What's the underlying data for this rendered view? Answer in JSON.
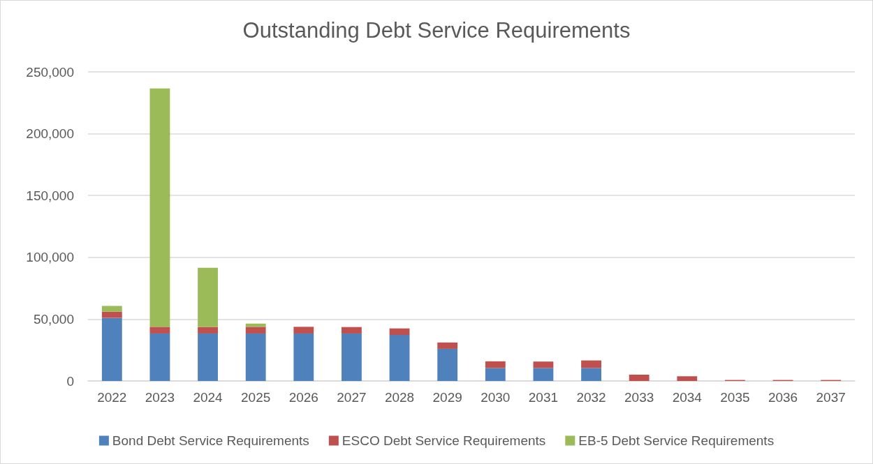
{
  "chart_data": {
    "type": "bar",
    "title": "Outstanding Debt Service Requirements",
    "stacked": true,
    "categories": [
      "2022",
      "2023",
      "2024",
      "2025",
      "2026",
      "2027",
      "2028",
      "2029",
      "2030",
      "2031",
      "2032",
      "2033",
      "2034",
      "2035",
      "2036",
      "2037"
    ],
    "series": [
      {
        "name": "Bond Debt Service Requirements",
        "color": "#4f81bd",
        "values": [
          51000,
          38400,
          38400,
          38400,
          38400,
          38400,
          37200,
          26000,
          10500,
          10500,
          10500,
          0,
          0,
          0,
          0,
          0
        ]
      },
      {
        "name": "ESCO Debt Service Requirements",
        "color": "#c0504d",
        "values": [
          5000,
          5400,
          5200,
          5400,
          5400,
          5200,
          5300,
          5100,
          5400,
          5200,
          6100,
          5100,
          3800,
          800,
          800,
          800
        ]
      },
      {
        "name": "EB-5 Debt Service Requirements",
        "color": "#9bbb59",
        "values": [
          4700,
          192800,
          48000,
          2600,
          0,
          0,
          0,
          0,
          0,
          0,
          0,
          0,
          0,
          0,
          0,
          0
        ]
      }
    ],
    "ylim": [
      0,
      250000
    ],
    "yticks": [
      0,
      {
        "value": 50000,
        "label": "50,000"
      },
      {
        "value": 100000,
        "label": "100,000"
      },
      {
        "value": 150000,
        "label": "150,000"
      },
      {
        "value": 200000,
        "label": "200,000"
      },
      {
        "value": 250000,
        "label": "250,000"
      }
    ],
    "grid": "y",
    "legend": "bottom"
  }
}
